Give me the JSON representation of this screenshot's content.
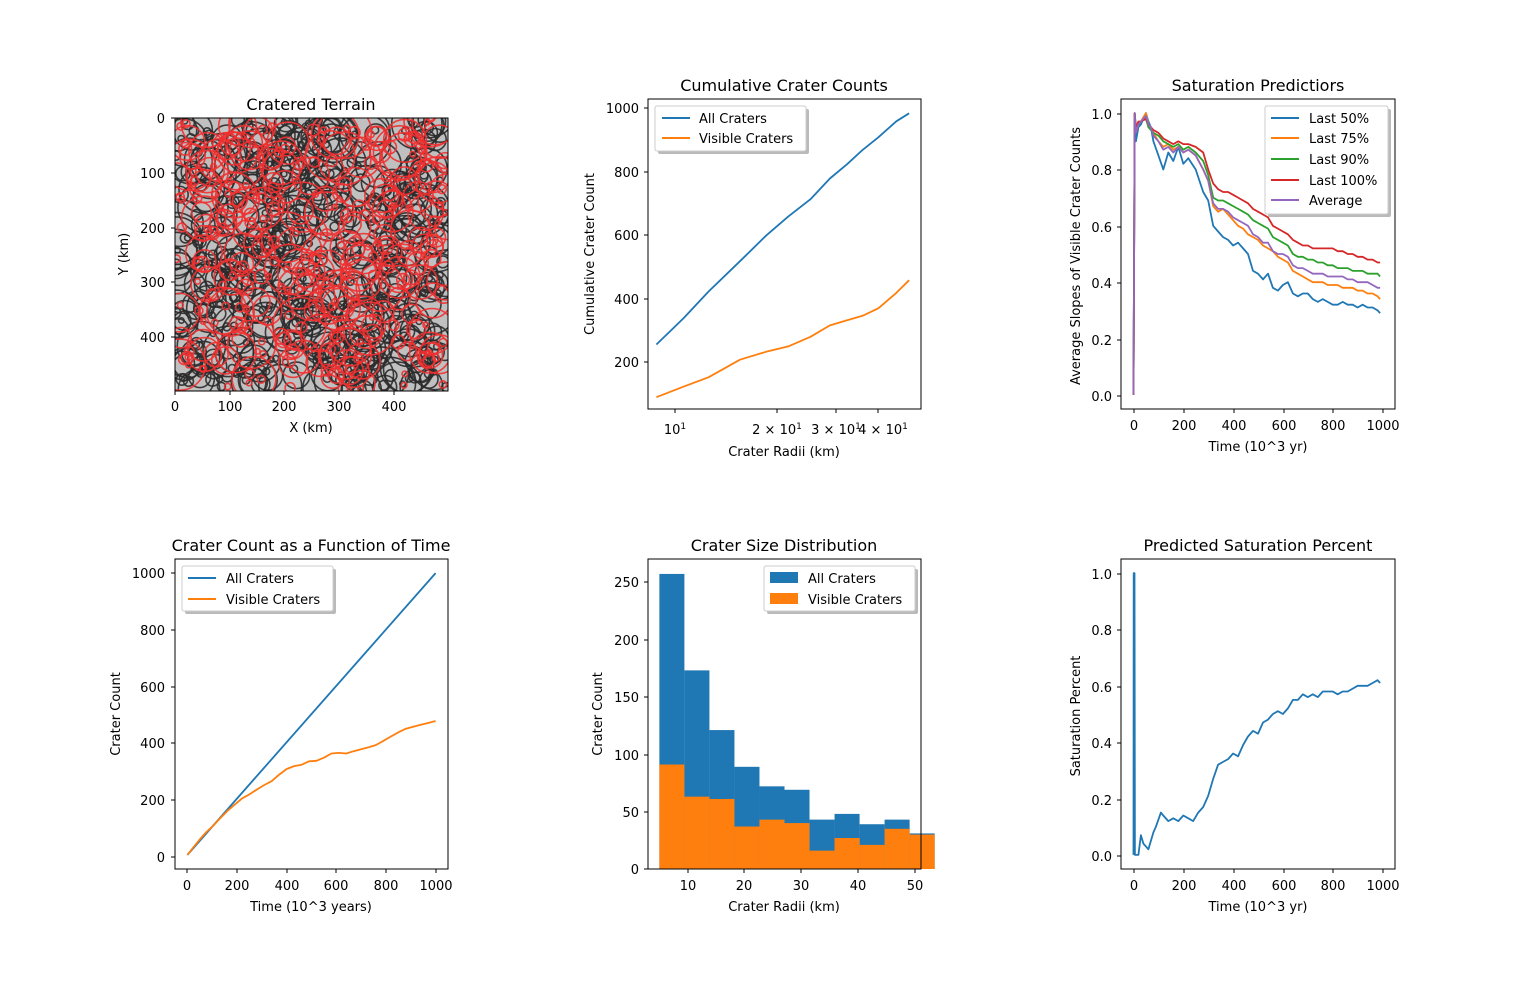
{
  "chart_data": [
    {
      "type": "scatter",
      "title": "Cratered Terrain",
      "xlabel": "X (km)",
      "ylabel": "Y (km)",
      "xlim": [
        0,
        500
      ],
      "ylim": [
        500,
        0
      ],
      "xticks": [
        "0",
        "100",
        "200",
        "300",
        "400"
      ],
      "yticks": [
        "0",
        "100",
        "200",
        "300",
        "400"
      ],
      "background": "#c0c0c0",
      "series": [
        {
          "color": "#2b2b2b"
        },
        {
          "color": "#f03030"
        }
      ],
      "approx_crater_count": {
        "dark": 620,
        "red": 360
      }
    },
    {
      "type": "line",
      "title": "Cumulative Crater Counts",
      "xlabel": "Crater Radii (km)",
      "ylabel": "Cumulative Crater Count",
      "xscale": "log",
      "xlim": [
        8.7,
        53
      ],
      "ylim": [
        55,
        1030
      ],
      "xticks": [
        "10^1",
        "2 × 10^1",
        "3 × 10^1",
        "4 × 10^1"
      ],
      "yticks": [
        "200",
        "400",
        "600",
        "800",
        "1000"
      ],
      "legend": "upper left",
      "series": [
        {
          "name": "All Craters",
          "color": "#1f77b4",
          "x": [
            9.2,
            11,
            13,
            16,
            19,
            22,
            25.5,
            29,
            32.5,
            36,
            40,
            45,
            49
          ],
          "y": [
            258,
            340,
            425,
            520,
            600,
            660,
            715,
            780,
            825,
            870,
            910,
            960,
            985
          ]
        },
        {
          "name": "Visible Craters",
          "color": "#ff7f0e",
          "x": [
            9.2,
            11,
            13,
            16,
            19,
            22,
            25.5,
            29,
            32.5,
            36,
            40,
            45,
            49
          ],
          "y": [
            92,
            125,
            155,
            210,
            235,
            252,
            282,
            318,
            334,
            348,
            372,
            420,
            460
          ]
        }
      ]
    },
    {
      "type": "line",
      "title": "Saturation Predictiors",
      "xlabel": "Time (10^3 yr)",
      "ylabel": "Average Slopes of Visible Crater Counts",
      "xlim": [
        -50,
        1050
      ],
      "ylim": [
        -0.05,
        1.05
      ],
      "xticks": [
        "0",
        "200",
        "400",
        "600",
        "800",
        "1000"
      ],
      "yticks": [
        "0.0",
        "0.2",
        "0.4",
        "0.6",
        "0.8",
        "1.0"
      ],
      "legend": "upper right",
      "x": [
        0,
        5,
        10,
        20,
        30,
        50,
        60,
        70,
        80,
        100,
        120,
        140,
        160,
        180,
        200,
        220,
        250,
        280,
        300,
        320,
        340,
        360,
        380,
        400,
        420,
        440,
        460,
        480,
        500,
        520,
        540,
        560,
        580,
        600,
        620,
        640,
        660,
        680,
        700,
        720,
        740,
        760,
        780,
        800,
        820,
        840,
        860,
        880,
        900,
        920,
        940,
        960,
        980,
        990
      ],
      "series": [
        {
          "name": "Last 50%",
          "color": "#1f77b4",
          "y": [
            0.0,
            1.0,
            0.9,
            0.95,
            0.96,
            1.0,
            0.97,
            0.95,
            0.9,
            0.85,
            0.8,
            0.86,
            0.83,
            0.88,
            0.82,
            0.84,
            0.8,
            0.72,
            0.69,
            0.6,
            0.58,
            0.56,
            0.55,
            0.53,
            0.54,
            0.52,
            0.5,
            0.44,
            0.43,
            0.41,
            0.43,
            0.38,
            0.37,
            0.39,
            0.4,
            0.36,
            0.35,
            0.36,
            0.36,
            0.34,
            0.33,
            0.34,
            0.33,
            0.32,
            0.32,
            0.33,
            0.32,
            0.32,
            0.31,
            0.32,
            0.31,
            0.31,
            0.3,
            0.29
          ]
        },
        {
          "name": "Last 75%",
          "color": "#ff7f0e",
          "y": [
            0.0,
            1.0,
            0.93,
            0.96,
            0.97,
            1.0,
            0.96,
            0.95,
            0.93,
            0.9,
            0.88,
            0.89,
            0.87,
            0.88,
            0.86,
            0.87,
            0.85,
            0.8,
            0.76,
            0.67,
            0.65,
            0.66,
            0.64,
            0.62,
            0.6,
            0.59,
            0.57,
            0.56,
            0.55,
            0.53,
            0.52,
            0.51,
            0.49,
            0.48,
            0.47,
            0.44,
            0.43,
            0.42,
            0.41,
            0.4,
            0.4,
            0.4,
            0.39,
            0.39,
            0.39,
            0.38,
            0.38,
            0.38,
            0.37,
            0.37,
            0.36,
            0.36,
            0.35,
            0.34
          ]
        },
        {
          "name": "Last 90%",
          "color": "#2ca02c",
          "y": [
            0.0,
            1.0,
            0.94,
            0.96,
            0.97,
            0.98,
            0.95,
            0.94,
            0.93,
            0.92,
            0.9,
            0.89,
            0.88,
            0.89,
            0.87,
            0.88,
            0.86,
            0.83,
            0.78,
            0.7,
            0.69,
            0.69,
            0.68,
            0.67,
            0.66,
            0.65,
            0.64,
            0.62,
            0.61,
            0.6,
            0.59,
            0.56,
            0.55,
            0.54,
            0.53,
            0.5,
            0.49,
            0.49,
            0.48,
            0.48,
            0.47,
            0.47,
            0.46,
            0.46,
            0.45,
            0.45,
            0.45,
            0.44,
            0.44,
            0.44,
            0.43,
            0.43,
            0.43,
            0.42
          ]
        },
        {
          "name": "Last 100%",
          "color": "#d62728",
          "y": [
            0.0,
            1.0,
            0.95,
            0.97,
            0.97,
            0.98,
            0.96,
            0.95,
            0.94,
            0.93,
            0.91,
            0.9,
            0.89,
            0.9,
            0.89,
            0.89,
            0.88,
            0.86,
            0.8,
            0.75,
            0.73,
            0.72,
            0.72,
            0.71,
            0.7,
            0.69,
            0.68,
            0.66,
            0.65,
            0.64,
            0.63,
            0.6,
            0.59,
            0.58,
            0.57,
            0.55,
            0.54,
            0.53,
            0.53,
            0.52,
            0.52,
            0.52,
            0.52,
            0.52,
            0.51,
            0.51,
            0.5,
            0.5,
            0.49,
            0.49,
            0.48,
            0.48,
            0.47,
            0.47
          ]
        },
        {
          "name": "Average",
          "color": "#9467bd",
          "y": [
            0.0,
            1.0,
            0.93,
            0.96,
            0.97,
            0.99,
            0.96,
            0.95,
            0.92,
            0.9,
            0.87,
            0.88,
            0.86,
            0.88,
            0.86,
            0.87,
            0.85,
            0.8,
            0.76,
            0.68,
            0.66,
            0.66,
            0.65,
            0.63,
            0.62,
            0.61,
            0.6,
            0.57,
            0.56,
            0.54,
            0.54,
            0.51,
            0.5,
            0.5,
            0.49,
            0.46,
            0.45,
            0.45,
            0.44,
            0.43,
            0.43,
            0.43,
            0.42,
            0.42,
            0.42,
            0.42,
            0.41,
            0.41,
            0.4,
            0.4,
            0.4,
            0.39,
            0.38,
            0.38
          ]
        }
      ]
    },
    {
      "type": "line",
      "title": "Crater Count as a Function of Time",
      "xlabel": "Time (10^3 years)",
      "ylabel": "Crater Count",
      "xlim": [
        -50,
        1050
      ],
      "ylim": [
        -50,
        1050
      ],
      "xticks": [
        "0",
        "200",
        "400",
        "600",
        "800",
        "1000"
      ],
      "yticks": [
        "0",
        "200",
        "400",
        "600",
        "800",
        "1000"
      ],
      "legend": "upper left",
      "series": [
        {
          "name": "All Craters",
          "color": "#1f77b4",
          "x": [
            0,
            1000
          ],
          "y": [
            0,
            1000
          ]
        },
        {
          "name": "Visible Craters",
          "color": "#ff7f0e",
          "x": [
            0,
            25,
            50,
            75,
            100,
            130,
            160,
            190,
            220,
            250,
            280,
            310,
            340,
            370,
            400,
            430,
            460,
            490,
            520,
            550,
            580,
            610,
            640,
            670,
            700,
            730,
            760,
            790,
            820,
            850,
            880,
            910,
            940,
            970,
            1000
          ],
          "y": [
            0,
            28,
            55,
            80,
            100,
            128,
            155,
            178,
            200,
            215,
            232,
            248,
            262,
            285,
            305,
            315,
            320,
            332,
            334,
            345,
            360,
            362,
            360,
            368,
            375,
            382,
            390,
            405,
            420,
            435,
            448,
            455,
            462,
            468,
            475
          ]
        }
      ]
    },
    {
      "type": "bar",
      "title": "Crater Size Distribution",
      "xlabel": "Crater Radii (km)",
      "ylabel": "Crater Count",
      "xlim": [
        3,
        51
      ],
      "ylim": [
        0,
        270
      ],
      "xticks": [
        "10",
        "20",
        "30",
        "40",
        "50"
      ],
      "yticks": [
        "0",
        "50",
        "100",
        "150",
        "200",
        "250"
      ],
      "legend": "upper right",
      "bin_edges": [
        5,
        9.4,
        13.8,
        18.2,
        22.6,
        27,
        31.4,
        35.8,
        40.2,
        44.6,
        49
      ],
      "series": [
        {
          "name": "All Craters",
          "color": "#1f77b4",
          "values": [
            257,
            173,
            121,
            89,
            72,
            69,
            43,
            48,
            39,
            43,
            31
          ]
        },
        {
          "name": "Visible Craters",
          "color": "#ff7f0e",
          "values": [
            91,
            63,
            61,
            37,
            43,
            40,
            16,
            27,
            21,
            35,
            30
          ]
        }
      ]
    },
    {
      "type": "line",
      "title": "Predicted Saturation Percent",
      "xlabel": "Time (10^3 yr)",
      "ylabel": "Saturation Percent",
      "xlim": [
        -50,
        1050
      ],
      "ylim": [
        -0.05,
        1.05
      ],
      "xticks": [
        "0",
        "200",
        "400",
        "600",
        "800",
        "1000"
      ],
      "yticks": [
        "0.0",
        "0.2",
        "0.4",
        "0.6",
        "0.8",
        "1.0"
      ],
      "series": [
        {
          "color": "#1f77b4",
          "x": [
            0,
            1,
            4,
            6,
            20,
            30,
            40,
            60,
            70,
            80,
            90,
            110,
            120,
            140,
            160,
            180,
            200,
            220,
            240,
            260,
            280,
            300,
            320,
            340,
            360,
            380,
            400,
            420,
            440,
            460,
            480,
            500,
            520,
            540,
            560,
            580,
            600,
            620,
            640,
            660,
            680,
            700,
            720,
            740,
            760,
            780,
            800,
            820,
            840,
            860,
            880,
            900,
            920,
            940,
            960,
            980,
            990
          ],
          "y": [
            0.0,
            1.0,
            1.0,
            0.0,
            0.0,
            0.07,
            0.04,
            0.02,
            0.05,
            0.08,
            0.1,
            0.15,
            0.14,
            0.12,
            0.13,
            0.12,
            0.14,
            0.13,
            0.12,
            0.15,
            0.17,
            0.21,
            0.27,
            0.32,
            0.33,
            0.34,
            0.36,
            0.35,
            0.39,
            0.42,
            0.44,
            0.43,
            0.47,
            0.48,
            0.5,
            0.51,
            0.5,
            0.52,
            0.55,
            0.55,
            0.57,
            0.56,
            0.57,
            0.56,
            0.58,
            0.58,
            0.58,
            0.57,
            0.58,
            0.58,
            0.59,
            0.6,
            0.6,
            0.6,
            0.61,
            0.62,
            0.61
          ]
        }
      ]
    }
  ]
}
